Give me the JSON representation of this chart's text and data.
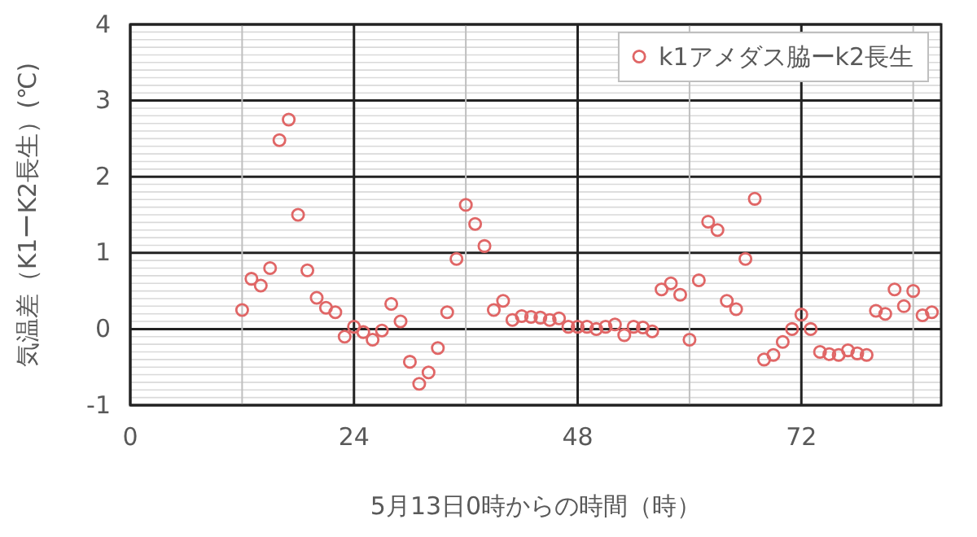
{
  "chart_data": {
    "type": "scatter",
    "xlabel": "5月13日0時からの時間（時）",
    "ylabel": "気温差（K1ーK2長生）(℃)",
    "xlim": [
      0,
      87
    ],
    "ylim": [
      -1,
      4
    ],
    "xticks": [
      0,
      {
        "value": 12,
        "label": null
      },
      24,
      {
        "value": 36,
        "label": null
      },
      48,
      {
        "value": 60,
        "label": null
      },
      72,
      {
        "value": 84,
        "label": null
      }
    ],
    "yticks": [
      -1,
      0,
      1,
      2,
      3,
      4
    ],
    "grid": true,
    "legend": "top right",
    "marker": "circle",
    "series": [
      {
        "name": "k1アメダス脇ーk2長生",
        "color": "#e06666",
        "x": [
          12,
          13,
          14,
          15,
          16,
          17,
          18,
          19,
          20,
          21,
          22,
          23,
          24,
          25,
          26,
          27,
          28,
          29,
          30,
          31,
          32,
          33,
          34,
          35,
          36,
          37,
          38,
          39,
          40,
          41,
          42,
          43,
          44,
          45,
          46,
          47,
          48,
          49,
          50,
          51,
          52,
          53,
          54,
          55,
          56,
          57,
          58,
          59,
          60,
          61,
          62,
          63,
          64,
          65,
          66,
          67,
          68,
          69,
          70,
          71,
          72,
          73,
          74,
          75,
          76,
          77,
          78,
          79,
          80,
          81,
          82,
          83,
          84,
          85,
          86
        ],
        "values": [
          0.25,
          0.66,
          0.57,
          0.8,
          2.48,
          2.75,
          1.5,
          0.77,
          0.41,
          0.28,
          0.22,
          -0.1,
          0.03,
          -0.04,
          -0.14,
          -0.02,
          0.33,
          0.1,
          -0.43,
          -0.72,
          -0.57,
          -0.25,
          0.22,
          0.92,
          1.63,
          1.38,
          1.09,
          0.25,
          0.37,
          0.12,
          0.17,
          0.16,
          0.15,
          0.12,
          0.14,
          0.03,
          0.03,
          0.03,
          0.0,
          0.03,
          0.06,
          -0.08,
          0.03,
          0.02,
          -0.03,
          0.52,
          0.6,
          0.45,
          -0.14,
          0.64,
          1.41,
          1.3,
          0.37,
          0.26,
          0.92,
          1.71,
          -0.4,
          -0.34,
          -0.17,
          0.0,
          0.19,
          0.0,
          -0.3,
          -0.33,
          -0.34,
          -0.28,
          -0.32,
          -0.34,
          0.24,
          0.2,
          0.52,
          0.3,
          0.5,
          0.18,
          0.22
        ]
      }
    ]
  }
}
